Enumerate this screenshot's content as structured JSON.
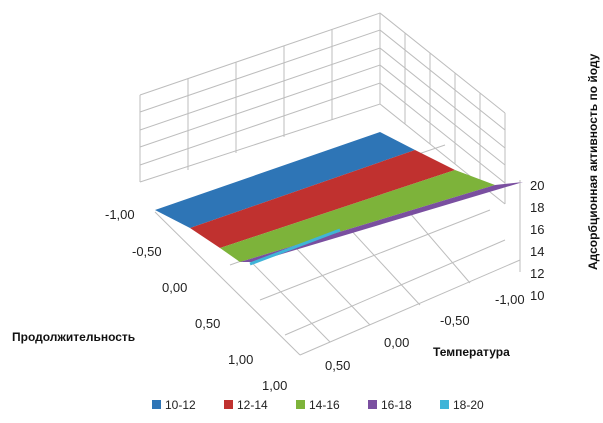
{
  "chart_data": {
    "type": "surface3d",
    "title": "",
    "xlabel": "Продолжительность",
    "ylabel": "Температура",
    "zlabel": "Адсорбционная активность по йоду",
    "x_ticks": [
      "-1,00",
      "-0,50",
      "0,00",
      "0,50",
      "1,00"
    ],
    "y_ticks": [
      "-1,00",
      "-0,50",
      "0,00",
      "0,50",
      "1,00"
    ],
    "z_ticks": [
      "10",
      "12",
      "14",
      "16",
      "18",
      "20"
    ],
    "zlim": [
      10,
      20
    ],
    "legend_position": "bottom",
    "bands": [
      {
        "name": "10-12",
        "color": "#2E75B6"
      },
      {
        "name": "12-14",
        "color": "#C0312F"
      },
      {
        "name": "14-16",
        "color": "#7DB33A"
      },
      {
        "name": "16-18",
        "color": "#7A4FA0"
      },
      {
        "name": "18-20",
        "color": "#3FB4D8"
      }
    ],
    "surface_level": 17.6
  }
}
